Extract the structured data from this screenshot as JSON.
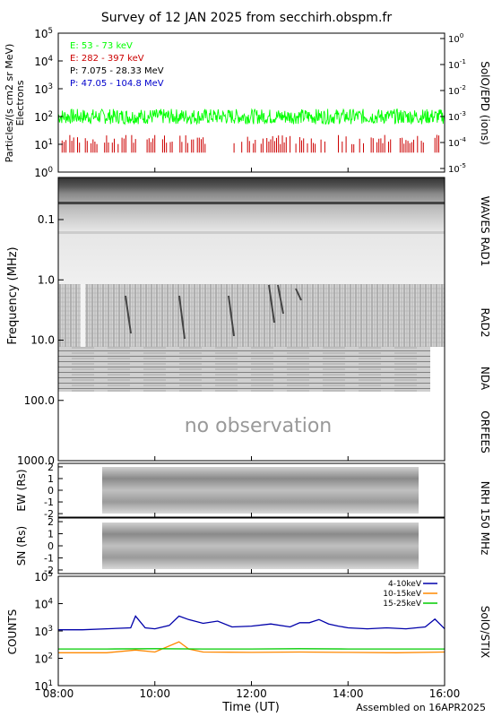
{
  "title": "Survey of 12 JAN 2025 from secchirh.obspm.fr",
  "footer": {
    "xlabel": "Time (UT)",
    "assembled": "Assembled on 16APR2025"
  },
  "colors": {
    "e1": "#00ff00",
    "e2": "#cc0000",
    "p1": "#000000",
    "p2": "#0000cc",
    "stix1": "#0000aa",
    "stix2": "#ff8800",
    "stix3": "#00cc00"
  },
  "x_axis": {
    "ticks": [
      "08:00",
      "10:00",
      "12:00",
      "14:00",
      "16:00"
    ],
    "hours": [
      8,
      10,
      12,
      14,
      16
    ],
    "range": [
      8,
      16
    ]
  },
  "panels": {
    "epd": {
      "ylabel": "Particles/(s cm2 sr MeV)",
      "ylabel2": "Electrons",
      "right_label": "SolO/EPD (ions)",
      "left_ticks": [
        {
          "b": "10",
          "e": "5"
        },
        {
          "b": "10",
          "e": "4"
        },
        {
          "b": "10",
          "e": "3"
        },
        {
          "b": "10",
          "e": "2"
        },
        {
          "b": "10",
          "e": "1"
        },
        {
          "b": "10",
          "e": "0"
        }
      ],
      "right_ticks": [
        {
          "b": "10",
          "e": "0"
        },
        {
          "b": "10",
          "e": "-1"
        },
        {
          "b": "10",
          "e": "-2"
        },
        {
          "b": "10",
          "e": "-3"
        },
        {
          "b": "10",
          "e": "-4"
        },
        {
          "b": "10",
          "e": "-5"
        }
      ],
      "legend": [
        {
          "label": "E: 53 - 73 keV",
          "color": "#00ff00"
        },
        {
          "label": "E: 282 - 397 keV",
          "color": "#cc0000"
        },
        {
          "label": "P: 7.075 - 28.33 MeV",
          "color": "#000000"
        },
        {
          "label": "P: 47.05 - 104.8 MeV",
          "color": "#0000cc"
        }
      ]
    },
    "radio": {
      "ylabel": "Frequency (MHz)",
      "ticks": [
        "0.1",
        "1.0",
        "10.0",
        "100.0",
        "1000.0"
      ],
      "right_labels": [
        "WAVES RAD1",
        "RAD2",
        "NDA",
        "ORFEES"
      ],
      "no_obs": "no observation"
    },
    "nrh_ew": {
      "ylabel": "EW (Rs)",
      "ticks": [
        "2",
        "1",
        "0",
        "-1",
        "-2"
      ]
    },
    "nrh_sn": {
      "ylabel": "SN (Rs)",
      "ticks": [
        "2",
        "1",
        "0",
        "-1",
        "-2"
      ]
    },
    "nrh_right": "NRH 150 MHz",
    "stix": {
      "ylabel": "COUNTS",
      "right_label": "SolO/STIX",
      "ticks": [
        {
          "b": "10",
          "e": "5"
        },
        {
          "b": "10",
          "e": "4"
        },
        {
          "b": "10",
          "e": "3"
        },
        {
          "b": "10",
          "e": "2"
        },
        {
          "b": "10",
          "e": "1"
        }
      ],
      "legend": [
        {
          "label": "4-10keV",
          "color": "#0000aa"
        },
        {
          "label": "10-15keV",
          "color": "#ff8800"
        },
        {
          "label": "15-25keV",
          "color": "#00cc00"
        }
      ]
    }
  },
  "chart_data": [
    {
      "type": "line",
      "panel": "SolO/EPD",
      "x_unit": "hour UT",
      "y_scale": "log",
      "ylim": [
        1,
        100000
      ],
      "series": [
        {
          "name": "E: 53 - 73 keV",
          "level": 100,
          "x_range": [
            8,
            16
          ]
        },
        {
          "name": "E: 282 - 397 keV",
          "level": 10,
          "x_range": [
            8,
            16
          ]
        }
      ]
    },
    {
      "type": "heatmap",
      "panel": "radio dynamic spectrum",
      "ylabel": "Frequency (MHz)",
      "y_scale": "log",
      "ylim": [
        0.02,
        1000
      ],
      "instrument_coverage": [
        {
          "name": "WAVES RAD1",
          "x_range": [
            8,
            16
          ],
          "f_range": [
            0.02,
            1.0
          ]
        },
        {
          "name": "RAD2",
          "x_range": [
            8,
            16
          ],
          "f_range": [
            1.0,
            14
          ]
        },
        {
          "name": "NDA",
          "x_range": [
            8,
            15.5
          ],
          "f_range": [
            10,
            80
          ]
        },
        {
          "name": "ORFEES",
          "x_range": [],
          "f_range": [
            140,
            1000
          ]
        }
      ]
    },
    {
      "type": "heatmap",
      "panel": "NRH 150 MHz",
      "x_range": [
        8.9,
        15.45
      ],
      "ylim": [
        -2.3,
        2.3
      ]
    },
    {
      "type": "line",
      "panel": "SolO/STIX",
      "y_scale": "log",
      "ylim": [
        10,
        100000
      ],
      "series": [
        {
          "name": "4-10keV",
          "x": [
            8.0,
            8.5,
            9.0,
            9.5,
            9.6,
            9.8,
            10.0,
            10.3,
            10.5,
            10.7,
            11.0,
            11.3,
            11.6,
            12.0,
            12.4,
            12.8,
            13.0,
            13.2,
            13.4,
            13.6,
            13.8,
            14.0,
            14.4,
            14.8,
            15.2,
            15.6,
            15.8,
            16.0
          ],
          "y": [
            1100,
            1100,
            1200,
            1300,
            3500,
            1300,
            1200,
            1600,
            3500,
            2600,
            1900,
            2300,
            1400,
            1500,
            1800,
            1400,
            2000,
            2000,
            2600,
            1800,
            1500,
            1300,
            1200,
            1300,
            1200,
            1400,
            2700,
            1200
          ]
        },
        {
          "name": "10-15keV",
          "x": [
            8.0,
            9.0,
            9.6,
            10.0,
            10.5,
            10.7,
            11.0,
            12.0,
            13.0,
            14.0,
            15.0,
            16.0
          ],
          "y": [
            160,
            160,
            200,
            170,
            400,
            220,
            170,
            165,
            170,
            165,
            160,
            170
          ]
        },
        {
          "name": "15-25keV",
          "x": [
            8.0,
            9.0,
            10.0,
            11.0,
            12.0,
            13.0,
            14.0,
            15.0,
            16.0
          ],
          "y": [
            220,
            220,
            225,
            220,
            220,
            225,
            220,
            220,
            220
          ]
        }
      ]
    }
  ]
}
